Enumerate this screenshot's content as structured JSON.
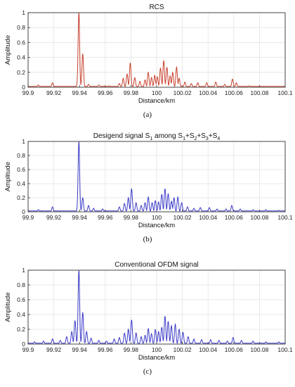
{
  "chart_data": [
    {
      "type": "line",
      "title": "RCS",
      "title_parts": [
        {
          "t": "RCS",
          "sub": false
        }
      ],
      "xlabel": "Distance/km",
      "ylabel": "Amplitude",
      "caption": "(a)",
      "xlim": [
        99.9,
        100.1
      ],
      "ylim": [
        0,
        1
      ],
      "xticks": [
        "99.9",
        "99.92",
        "99.94",
        "99.96",
        "99.98",
        "100",
        "100.02",
        "100.04",
        "100.06",
        "100.08",
        "100.1"
      ],
      "yticks": [
        "0",
        "0.2",
        "0.4",
        "0.6",
        "0.8",
        "1"
      ],
      "grid": true,
      "color": "#c8422e",
      "series": [
        {
          "peaks": [
            [
              99.908,
              0.03
            ],
            [
              99.919,
              0.06
            ],
            [
              99.9395,
              1.0
            ],
            [
              99.9425,
              0.45
            ],
            [
              99.947,
              0.04
            ],
            [
              99.955,
              0.03
            ],
            [
              99.963,
              0.02
            ],
            [
              99.971,
              0.05
            ],
            [
              99.974,
              0.12
            ],
            [
              99.977,
              0.18
            ],
            [
              99.9795,
              0.33
            ],
            [
              99.983,
              0.13
            ],
            [
              99.987,
              0.08
            ],
            [
              99.991,
              0.1
            ],
            [
              99.9935,
              0.2
            ],
            [
              99.996,
              0.13
            ],
            [
              99.9985,
              0.16
            ],
            [
              100.0005,
              0.14
            ],
            [
              100.003,
              0.26
            ],
            [
              100.0055,
              0.36
            ],
            [
              100.008,
              0.27
            ],
            [
              100.0105,
              0.15
            ],
            [
              100.0125,
              0.2
            ],
            [
              100.0155,
              0.27
            ],
            [
              100.0175,
              0.12
            ],
            [
              100.022,
              0.07
            ],
            [
              100.027,
              0.05
            ],
            [
              100.032,
              0.06
            ],
            [
              100.039,
              0.06
            ],
            [
              100.046,
              0.07
            ],
            [
              100.053,
              0.04
            ],
            [
              100.059,
              0.11
            ],
            [
              100.062,
              0.06
            ],
            [
              100.072,
              0.02
            ]
          ]
        }
      ]
    },
    {
      "type": "line",
      "title": "Designed signal S1 among S1+S2+S3+S4",
      "title_parts": [
        {
          "t": "Desigend signal S",
          "sub": false
        },
        {
          "t": "1",
          "sub": true
        },
        {
          "t": " among S",
          "sub": false
        },
        {
          "t": "1",
          "sub": true
        },
        {
          "t": "+S",
          "sub": false
        },
        {
          "t": "2",
          "sub": true
        },
        {
          "t": "+S",
          "sub": false
        },
        {
          "t": "3",
          "sub": true
        },
        {
          "t": "+S",
          "sub": false
        },
        {
          "t": "4",
          "sub": true
        }
      ],
      "xlabel": "Distance/km",
      "ylabel": "Amplitude",
      "caption": "(b)",
      "xlim": [
        99.9,
        100.1
      ],
      "ylim": [
        0,
        1
      ],
      "xticks": [
        "99.9",
        "99.92",
        "99.94",
        "99.96",
        "99.98",
        "100",
        "100.02",
        "100.04",
        "100.06",
        "100.08",
        "100.1"
      ],
      "yticks": [
        "0",
        "0.2",
        "0.4",
        "0.6",
        "0.8",
        "1"
      ],
      "grid": true,
      "color": "#3b3bc8",
      "series": [
        {
          "peaks": [
            [
              99.908,
              0.03
            ],
            [
              99.919,
              0.07
            ],
            [
              99.9395,
              1.0
            ],
            [
              99.9425,
              0.2
            ],
            [
              99.947,
              0.09
            ],
            [
              99.951,
              0.05
            ],
            [
              99.958,
              0.04
            ],
            [
              99.971,
              0.07
            ],
            [
              99.975,
              0.12
            ],
            [
              99.978,
              0.2
            ],
            [
              99.9805,
              0.33
            ],
            [
              99.984,
              0.13
            ],
            [
              99.988,
              0.09
            ],
            [
              99.991,
              0.13
            ],
            [
              99.9935,
              0.21
            ],
            [
              99.9965,
              0.13
            ],
            [
              99.999,
              0.16
            ],
            [
              100.0015,
              0.14
            ],
            [
              100.004,
              0.25
            ],
            [
              100.0065,
              0.33
            ],
            [
              100.009,
              0.26
            ],
            [
              100.0115,
              0.15
            ],
            [
              100.0135,
              0.2
            ],
            [
              100.0165,
              0.21
            ],
            [
              100.0195,
              0.13
            ],
            [
              100.024,
              0.07
            ],
            [
              100.029,
              0.05
            ],
            [
              100.034,
              0.06
            ],
            [
              100.041,
              0.06
            ],
            [
              100.047,
              0.04
            ],
            [
              100.054,
              0.04
            ],
            [
              100.0585,
              0.09
            ],
            [
              100.065,
              0.04
            ],
            [
              100.075,
              0.03
            ],
            [
              100.085,
              0.03
            ],
            [
              100.095,
              0.02
            ]
          ]
        }
      ]
    },
    {
      "type": "line",
      "title": "Conventional OFDM signal",
      "title_parts": [
        {
          "t": "Conventional OFDM signal",
          "sub": false
        }
      ],
      "xlabel": "Distance/km",
      "ylabel": "Amplitude",
      "caption": "(c)",
      "xlim": [
        99.9,
        100.1
      ],
      "ylim": [
        0,
        1
      ],
      "xticks": [
        "99.9",
        "99.92",
        "99.94",
        "99.96",
        "99.98",
        "100",
        "100.02",
        "100.04",
        "100.06",
        "100.08",
        "100.1"
      ],
      "yticks": [
        "0",
        "0.2",
        "0.4",
        "0.6",
        "0.8",
        "1"
      ],
      "grid": true,
      "color": "#3b3bc8",
      "series": [
        {
          "peaks": [
            [
              99.905,
              0.03
            ],
            [
              99.912,
              0.04
            ],
            [
              99.919,
              0.07
            ],
            [
              99.925,
              0.05
            ],
            [
              99.93,
              0.1
            ],
            [
              99.934,
              0.17
            ],
            [
              99.9365,
              0.32
            ],
            [
              99.9395,
              1.0
            ],
            [
              99.9425,
              0.43
            ],
            [
              99.9455,
              0.17
            ],
            [
              99.949,
              0.08
            ],
            [
              99.955,
              0.05
            ],
            [
              99.961,
              0.04
            ],
            [
              99.967,
              0.07
            ],
            [
              99.971,
              0.09
            ],
            [
              99.975,
              0.15
            ],
            [
              99.978,
              0.2
            ],
            [
              99.9805,
              0.33
            ],
            [
              99.984,
              0.15
            ],
            [
              99.988,
              0.1
            ],
            [
              99.991,
              0.12
            ],
            [
              99.9935,
              0.21
            ],
            [
              99.996,
              0.14
            ],
            [
              99.999,
              0.2
            ],
            [
              100.0015,
              0.17
            ],
            [
              100.004,
              0.23
            ],
            [
              100.0065,
              0.38
            ],
            [
              100.009,
              0.31
            ],
            [
              100.0115,
              0.25
            ],
            [
              100.0145,
              0.27
            ],
            [
              100.0175,
              0.2
            ],
            [
              100.0205,
              0.16
            ],
            [
              100.0245,
              0.1
            ],
            [
              100.029,
              0.07
            ],
            [
              100.035,
              0.06
            ],
            [
              100.042,
              0.06
            ],
            [
              100.0485,
              0.05
            ],
            [
              100.055,
              0.04
            ],
            [
              100.0595,
              0.09
            ],
            [
              100.066,
              0.05
            ],
            [
              100.075,
              0.04
            ],
            [
              100.085,
              0.03
            ],
            [
              100.095,
              0.03
            ]
          ]
        }
      ]
    }
  ]
}
